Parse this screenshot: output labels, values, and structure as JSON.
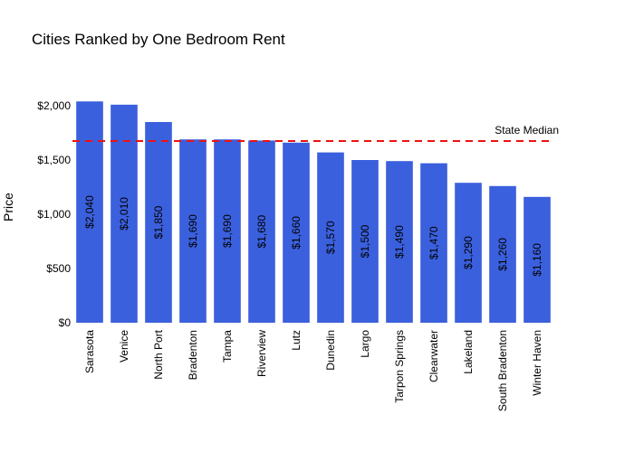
{
  "chart_data": {
    "type": "bar",
    "title": "Cities Ranked by One Bedroom Rent",
    "xlabel": "",
    "ylabel": "Price",
    "categories": [
      "Sarasota",
      "Venice",
      "North Port",
      "Bradenton",
      "Tampa",
      "Riverview",
      "Lutz",
      "Dunedin",
      "Largo",
      "Tarpon Springs",
      "Clearwater",
      "Lakeland",
      "South Bradenton",
      "Winter Haven"
    ],
    "values": [
      2040,
      2010,
      1850,
      1690,
      1690,
      1680,
      1660,
      1570,
      1500,
      1490,
      1470,
      1290,
      1260,
      1160
    ],
    "data_labels": [
      "$2,040",
      "$2,010",
      "$1,850",
      "$1,690",
      "$1,690",
      "$1,680",
      "$1,660",
      "$1,570",
      "$1,500",
      "$1,490",
      "$1,470",
      "$1,290",
      "$1,260",
      "$1,160"
    ],
    "ylim": [
      0,
      2100
    ],
    "yticks": [
      0,
      500,
      1000,
      1500,
      2000
    ],
    "ytick_labels": [
      "$0",
      "$500",
      "$1,000",
      "$1,500",
      "$2,000"
    ],
    "bar_color": "#3b60dd",
    "reference_line": {
      "label": "State Median",
      "value": 1675,
      "color": "#ee1111",
      "style": "dashed"
    },
    "grid": false,
    "legend": "none"
  }
}
